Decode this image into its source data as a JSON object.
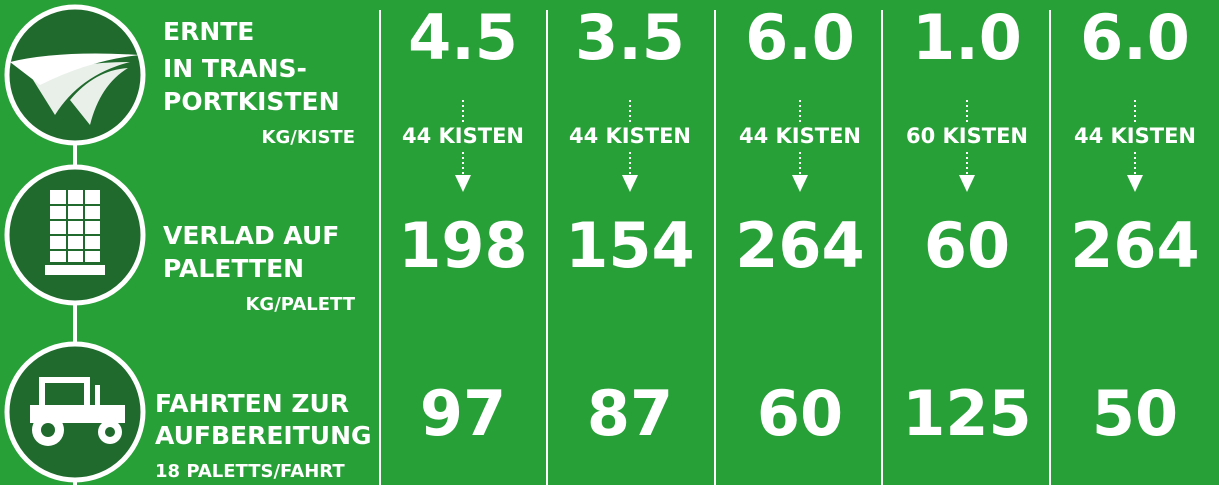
{
  "rows": [
    {
      "label": [
        "ERNTE",
        "IN TRANS-",
        "PORTKISTEN"
      ],
      "unit": "KG/KISTE",
      "values": [
        "4.5",
        "3.5",
        "6.0",
        "1.0",
        "6.0"
      ]
    },
    {
      "label": [
        "VERLAD AUF",
        "PALETTEN"
      ],
      "unit": "KG/PALETT",
      "values": [
        "198",
        "154",
        "264",
        "60",
        "264"
      ]
    },
    {
      "label": [
        "FAHRTEN ZUR",
        "AUFBEREITUNG"
      ],
      "unit": "18 PALETTS/FAHRT",
      "values": [
        "97",
        "87",
        "60",
        "125",
        "50"
      ]
    }
  ],
  "kisten": [
    "44 KISTEN",
    "44 KISTEN",
    "44 KISTEN",
    "60 KISTEN",
    "44 KISTEN"
  ]
}
